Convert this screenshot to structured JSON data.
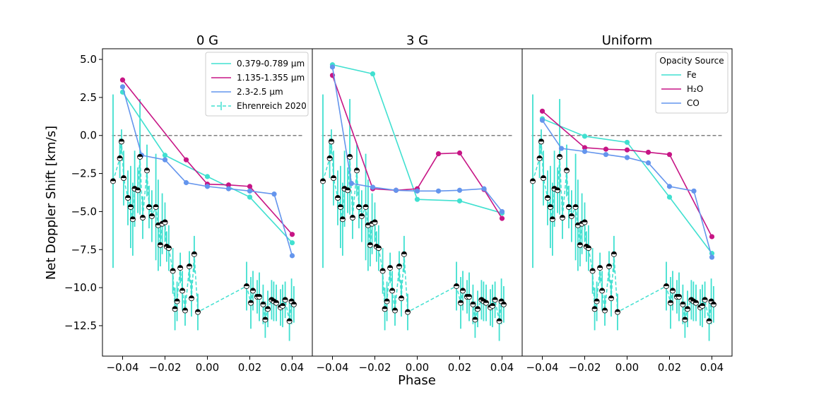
{
  "figure": {
    "xlabel": "Phase",
    "ylabel": "Net Doppler Shift [km/s]"
  },
  "colors": {
    "optical": "#40E0D0",
    "infrared": "#C71585",
    "k_band": "#6495ED",
    "observed": "#40E0D0",
    "reference": "#808080"
  },
  "chart_data": {
    "type": "line",
    "xlim": [
      -0.0495,
      0.0495
    ],
    "ylim": [
      -14.5,
      5.7
    ],
    "xticks": [
      -0.04,
      -0.02,
      0.0,
      0.02,
      0.04
    ],
    "xtick_labels": [
      "−0.04",
      "−0.02",
      "0.00",
      "0.02",
      "0.04"
    ],
    "yticks": [
      5.0,
      2.5,
      0.0,
      -2.5,
      -5.0,
      -7.5,
      -10.0,
      -12.5
    ],
    "ytick_labels": [
      "5.0",
      "2.5",
      "0.0",
      "−2.5",
      "−5.0",
      "−7.5",
      "−10.0",
      "−12.5"
    ],
    "reference_line": 0.0,
    "observed": {
      "name": "Ehrenreich 2020",
      "x": [
        -0.0445,
        -0.0413,
        -0.0405,
        -0.0395,
        -0.0375,
        -0.0362,
        -0.0352,
        -0.0343,
        -0.0328,
        -0.0318,
        -0.0305,
        -0.0285,
        -0.0275,
        -0.0262,
        -0.0243,
        -0.0232,
        -0.0222,
        -0.0213,
        -0.02,
        -0.0192,
        -0.0182,
        -0.0163,
        -0.0153,
        -0.0143,
        -0.0128,
        -0.0118,
        -0.0105,
        -0.0085,
        -0.0075,
        -0.0062,
        -0.0045,
        0.0185,
        0.0205,
        0.0215,
        0.0235,
        0.0245,
        0.0263,
        0.0273,
        0.0285,
        0.0303,
        0.0313,
        0.0325,
        0.0345,
        0.0355,
        0.0367,
        0.0387,
        0.0397,
        0.0408
      ],
      "y": [
        -3.0,
        -1.5,
        -0.4,
        -2.8,
        -4.1,
        -4.7,
        -5.5,
        -3.5,
        -3.6,
        -1.4,
        -5.4,
        -2.3,
        -4.7,
        -5.3,
        -4.7,
        -5.9,
        -7.2,
        -5.8,
        -5.7,
        -7.3,
        -7.4,
        -8.9,
        -11.4,
        -10.9,
        -8.7,
        -10.2,
        -11.5,
        -8.6,
        -10.7,
        -7.8,
        -11.6,
        -9.9,
        -11.0,
        -10.2,
        -10.6,
        -10.6,
        -11.1,
        -12.1,
        -11.4,
        -10.8,
        -10.9,
        -11.0,
        -11.3,
        -11.2,
        -10.8,
        -12.2,
        -10.9,
        -11.1
      ],
      "yerr": [
        5.7,
        1.3,
        0.8,
        1.8,
        1.8,
        2.7,
        2.4,
        2.5,
        1.5,
        3.8,
        1.4,
        1.7,
        1.4,
        1.7,
        3.5,
        3.0,
        1.4,
        2.0,
        1.3,
        1.0,
        1.5,
        1.5,
        1.4,
        1.3,
        1.0,
        1.3,
        1.0,
        1.0,
        1.2,
        1.2,
        1.2,
        1.6,
        1.7,
        1.3,
        1.1,
        1.6,
        1.3,
        1.2,
        1.2,
        1.3,
        1.3,
        1.2,
        1.2,
        1.4,
        1.2,
        1.3,
        1.5,
        1.2
      ]
    },
    "panels": [
      {
        "title": "0 G",
        "legend": {
          "title": "",
          "entries": [
            {
              "label": "0.379-0.789 μm",
              "color_key": "optical",
              "kind": "line"
            },
            {
              "label": "1.135-1.355 μm",
              "color_key": "infrared",
              "kind": "line"
            },
            {
              "label": "2.3-2.5 μm",
              "color_key": "k_band",
              "kind": "line"
            },
            {
              "label": "Ehrenreich 2020",
              "color_key": "observed",
              "kind": "errorbar"
            }
          ]
        },
        "series": [
          {
            "color_key": "optical",
            "x": [
              -0.04,
              -0.02,
              0.0,
              0.02,
              0.04
            ],
            "y": [
              2.85,
              -1.3,
              -2.7,
              -4.05,
              -7.05
            ]
          },
          {
            "color_key": "infrared",
            "x": [
              -0.04,
              -0.01,
              0.0,
              0.01,
              0.02,
              0.04
            ],
            "y": [
              3.65,
              -1.6,
              -3.2,
              -3.25,
              -3.35,
              -6.5
            ]
          },
          {
            "color_key": "k_band",
            "x": [
              -0.04,
              -0.031,
              -0.02,
              -0.01,
              0.0,
              0.01,
              0.02,
              0.0315,
              0.04
            ],
            "y": [
              3.2,
              -1.3,
              -1.6,
              -3.1,
              -3.35,
              -3.5,
              -3.65,
              -3.85,
              -7.9
            ]
          }
        ]
      },
      {
        "title": "3 G",
        "legend": null,
        "series": [
          {
            "color_key": "optical",
            "x": [
              -0.04,
              -0.021,
              0.0,
              0.02,
              0.04
            ],
            "y": [
              4.65,
              4.05,
              -4.2,
              -4.3,
              -5.1
            ]
          },
          {
            "color_key": "infrared",
            "x": [
              -0.04,
              -0.021,
              -0.01,
              0.0,
              0.01,
              0.02,
              0.0315,
              0.04
            ],
            "y": [
              3.95,
              -3.5,
              -3.6,
              -3.5,
              -1.2,
              -1.15,
              -3.55,
              -5.45
            ]
          },
          {
            "color_key": "k_band",
            "x": [
              -0.04,
              -0.031,
              -0.021,
              -0.01,
              0.0,
              0.01,
              0.02,
              0.0315,
              0.04
            ],
            "y": [
              4.5,
              -3.15,
              -3.4,
              -3.6,
              -3.65,
              -3.65,
              -3.6,
              -3.5,
              -5.0
            ]
          }
        ]
      },
      {
        "title": "Uniform",
        "legend": {
          "title": "Opacity Source",
          "entries": [
            {
              "label": "Fe",
              "color_key": "optical",
              "kind": "line"
            },
            {
              "label": "H₂O",
              "color_key": "infrared",
              "kind": "line"
            },
            {
              "label": "CO",
              "color_key": "k_band",
              "kind": "line"
            }
          ]
        },
        "series": [
          {
            "color_key": "optical",
            "x": [
              -0.04,
              -0.02,
              0.0,
              0.02,
              0.04
            ],
            "y": [
              1.1,
              -0.05,
              -0.45,
              -4.05,
              -7.75
            ]
          },
          {
            "color_key": "infrared",
            "x": [
              -0.04,
              -0.02,
              -0.01,
              0.0,
              0.01,
              0.02,
              0.04
            ],
            "y": [
              1.6,
              -0.8,
              -0.9,
              -0.95,
              -1.1,
              -1.25,
              -6.65
            ]
          },
          {
            "color_key": "k_band",
            "x": [
              -0.04,
              -0.031,
              -0.02,
              -0.01,
              0.0,
              0.01,
              0.02,
              0.0315,
              0.04
            ],
            "y": [
              1.0,
              -0.85,
              -1.05,
              -1.25,
              -1.45,
              -1.8,
              -3.35,
              -3.65,
              -8.0
            ]
          }
        ]
      }
    ]
  }
}
